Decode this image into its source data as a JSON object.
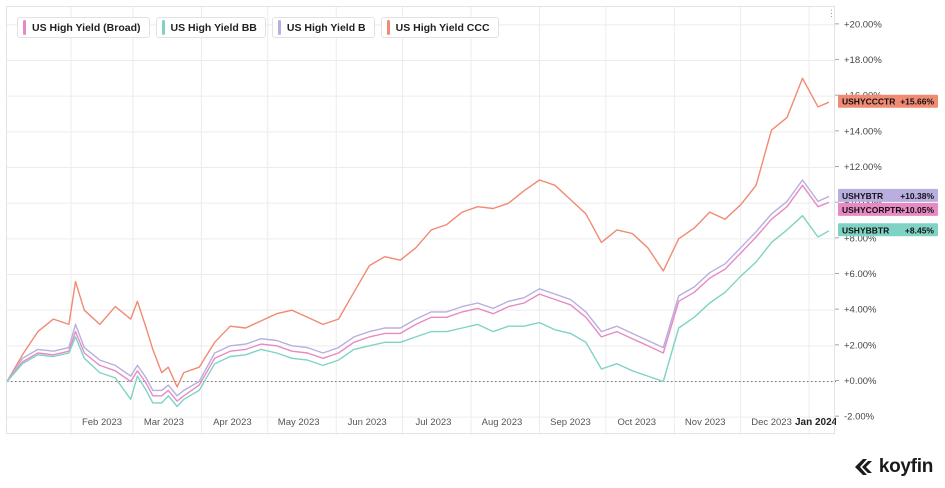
{
  "legend": [
    {
      "label": "US High Yield (Broad)",
      "color": "#e78ac3"
    },
    {
      "label": "US High Yield BB",
      "color": "#7fd3c4"
    },
    {
      "label": "US High Yield B",
      "color": "#b8aee0"
    },
    {
      "label": "US High Yield CCC",
      "color": "#f08a73"
    }
  ],
  "brand": {
    "name": "koyfin"
  },
  "chart_data": {
    "type": "line",
    "x_axis": {
      "range": [
        "2023-01-03",
        "2024-01-10"
      ],
      "tick_labels": [
        "Feb 2023",
        "Mar 2023",
        "Apr 2023",
        "May 2023",
        "Jun 2023",
        "Jul 2023",
        "Aug 2023",
        "Sep 2023",
        "Oct 2023",
        "Nov 2023",
        "Dec 2023",
        "Jan 2024"
      ]
    },
    "y_axis": {
      "ylim": [
        -3.0,
        21.0
      ],
      "tick_labels": [
        "-2.00%",
        "+0.00%",
        "+2.00%",
        "+4.00%",
        "+6.00%",
        "+8.00%",
        "+10.00%",
        "+12.00%",
        "+14.00%",
        "+16.00%",
        "+18.00%",
        "+20.00%"
      ],
      "position": "right"
    },
    "grid": true,
    "baseline": 0,
    "x": [
      "2023-01-03",
      "2023-01-10",
      "2023-01-17",
      "2023-01-24",
      "2023-01-31",
      "2023-02-03",
      "2023-02-07",
      "2023-02-14",
      "2023-02-21",
      "2023-02-28",
      "2023-03-03",
      "2023-03-07",
      "2023-03-10",
      "2023-03-14",
      "2023-03-17",
      "2023-03-21",
      "2023-03-24",
      "2023-03-31",
      "2023-04-07",
      "2023-04-14",
      "2023-04-21",
      "2023-04-28",
      "2023-05-05",
      "2023-05-12",
      "2023-05-19",
      "2023-05-26",
      "2023-06-02",
      "2023-06-09",
      "2023-06-16",
      "2023-06-23",
      "2023-06-30",
      "2023-07-07",
      "2023-07-14",
      "2023-07-21",
      "2023-07-28",
      "2023-08-04",
      "2023-08-11",
      "2023-08-18",
      "2023-08-25",
      "2023-09-01",
      "2023-09-08",
      "2023-09-15",
      "2023-09-22",
      "2023-09-29",
      "2023-10-06",
      "2023-10-13",
      "2023-10-20",
      "2023-10-27",
      "2023-11-03",
      "2023-11-10",
      "2023-11-17",
      "2023-11-24",
      "2023-12-01",
      "2023-12-08",
      "2023-12-15",
      "2023-12-22",
      "2023-12-29",
      "2024-01-05",
      "2024-01-10"
    ],
    "series": [
      {
        "name": "US High Yield CCC",
        "color": "#f08a73",
        "end_tag": "USHYCCCTR",
        "end_value": "+15.66%",
        "values": [
          0.0,
          1.5,
          2.8,
          3.5,
          3.2,
          5.6,
          4.0,
          3.2,
          4.2,
          3.5,
          4.5,
          3.0,
          1.8,
          0.5,
          0.8,
          -0.3,
          0.5,
          0.8,
          2.2,
          3.1,
          3.0,
          3.4,
          3.8,
          4.0,
          3.6,
          3.2,
          3.5,
          5.0,
          6.5,
          7.0,
          6.8,
          7.5,
          8.5,
          8.8,
          9.5,
          9.8,
          9.7,
          10.0,
          10.7,
          11.3,
          11.0,
          10.2,
          9.4,
          7.8,
          8.5,
          8.3,
          7.5,
          6.2,
          8.0,
          8.6,
          9.5,
          9.1,
          9.9,
          11.0,
          14.1,
          14.8,
          17.0,
          15.4,
          15.66
        ]
      },
      {
        "name": "US High Yield B",
        "color": "#b8aee0",
        "end_tag": "USHYBTR",
        "end_value": "+10.38%",
        "values": [
          0.0,
          1.3,
          1.8,
          1.7,
          1.9,
          3.2,
          1.9,
          1.2,
          0.9,
          0.3,
          0.9,
          0.2,
          -0.5,
          -0.5,
          -0.2,
          -0.8,
          -0.5,
          0.0,
          1.6,
          2.0,
          2.1,
          2.4,
          2.3,
          2.0,
          1.9,
          1.6,
          1.9,
          2.5,
          2.8,
          3.0,
          3.0,
          3.5,
          3.9,
          3.9,
          4.2,
          4.4,
          4.1,
          4.5,
          4.7,
          5.2,
          4.9,
          4.6,
          3.9,
          2.8,
          3.1,
          2.7,
          2.3,
          1.9,
          4.8,
          5.3,
          6.1,
          6.6,
          7.5,
          8.4,
          9.4,
          10.1,
          11.3,
          10.1,
          10.38
        ]
      },
      {
        "name": "US High Yield (Broad)",
        "color": "#e78ac3",
        "end_tag": "USHYCORPTR",
        "end_value": "+10.05%",
        "values": [
          0.0,
          1.1,
          1.6,
          1.5,
          1.7,
          2.8,
          1.6,
          0.9,
          0.6,
          0.0,
          0.6,
          -0.1,
          -0.8,
          -0.8,
          -0.5,
          -1.1,
          -0.8,
          -0.2,
          1.3,
          1.7,
          1.8,
          2.1,
          2.0,
          1.7,
          1.6,
          1.3,
          1.6,
          2.2,
          2.5,
          2.7,
          2.7,
          3.2,
          3.6,
          3.6,
          3.9,
          4.1,
          3.8,
          4.2,
          4.4,
          4.9,
          4.6,
          4.3,
          3.6,
          2.5,
          2.8,
          2.4,
          2.0,
          1.6,
          4.5,
          5.0,
          5.8,
          6.3,
          7.2,
          8.1,
          9.1,
          9.8,
          11.0,
          9.8,
          10.05
        ]
      },
      {
        "name": "US High Yield BB",
        "color": "#7fd3c4",
        "end_tag": "USHYBBTR",
        "end_value": "+8.45%",
        "values": [
          0.0,
          1.0,
          1.5,
          1.4,
          1.6,
          2.5,
          1.3,
          0.5,
          0.2,
          -1.0,
          0.3,
          -0.5,
          -1.2,
          -1.2,
          -0.8,
          -1.4,
          -1.0,
          -0.5,
          1.0,
          1.4,
          1.5,
          1.8,
          1.6,
          1.3,
          1.2,
          0.9,
          1.2,
          1.8,
          2.0,
          2.2,
          2.2,
          2.5,
          2.8,
          2.8,
          3.0,
          3.2,
          2.8,
          3.1,
          3.1,
          3.3,
          2.9,
          2.7,
          2.2,
          0.7,
          1.0,
          0.6,
          0.3,
          0.0,
          3.0,
          3.6,
          4.4,
          5.0,
          5.9,
          6.7,
          7.8,
          8.5,
          9.3,
          8.1,
          8.45
        ]
      }
    ]
  }
}
